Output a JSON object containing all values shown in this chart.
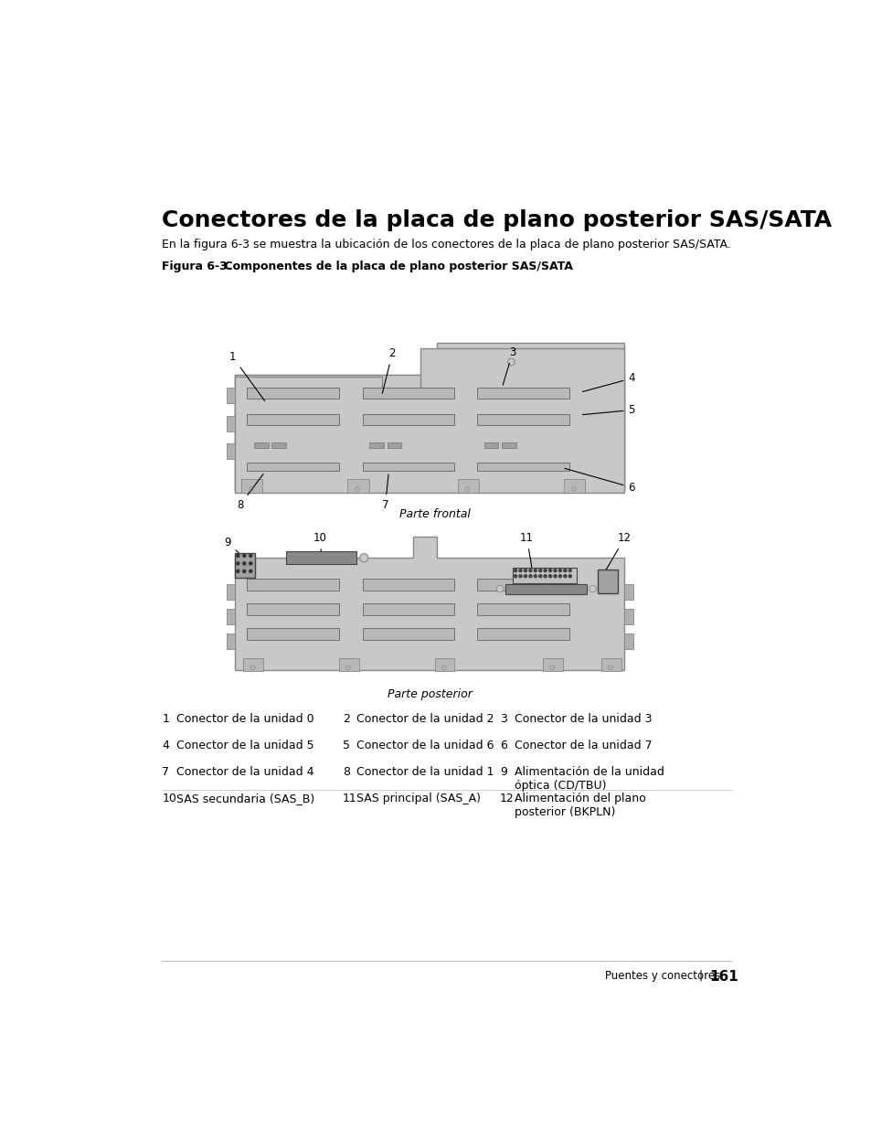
{
  "title": "Conectores de la placa de plano posterior SAS/SATA",
  "subtitle": "En la figura 6-3 se muestra la ubicación de los conectores de la placa de plano posterior SAS/SATA.",
  "fig_label": "Figura 6-3.",
  "fig_desc": "    Componentes de la placa de plano posterior SAS/SATA",
  "label_frontal": "Parte frontal",
  "label_posterior": "Parte posterior",
  "footer_text": "Puentes y conectores",
  "footer_pipe": "|",
  "footer_page": "161",
  "bg_color": "#ffffff",
  "board_color": "#c8c8c8",
  "board_border": "#888888",
  "slot_fill": "#b8b8b8",
  "slot_border": "#707070",
  "text_color": "#000000",
  "row_items": [
    [
      [
        "1",
        "Conector de la unidad 0"
      ],
      [
        "2",
        "Conector de la unidad 2"
      ],
      [
        "3",
        "Conector de la unidad 3"
      ]
    ],
    [
      [
        "4",
        "Conector de la unidad 5"
      ],
      [
        "5",
        "Conector de la unidad 6"
      ],
      [
        "6",
        "Conector de la unidad 7"
      ]
    ],
    [
      [
        "7",
        "Conector de la unidad 4"
      ],
      [
        "8",
        "Conector de la unidad 1"
      ],
      [
        "9",
        "Alimentación de la unidad\nóptica (CD/TBU)"
      ]
    ],
    [
      [
        "10",
        "SAS secundaria (SAS_B)"
      ],
      [
        "11",
        "SAS principal (SAS_A)"
      ],
      [
        "12",
        "Alimentación del plano\nposterior (BKPLN)"
      ]
    ]
  ]
}
